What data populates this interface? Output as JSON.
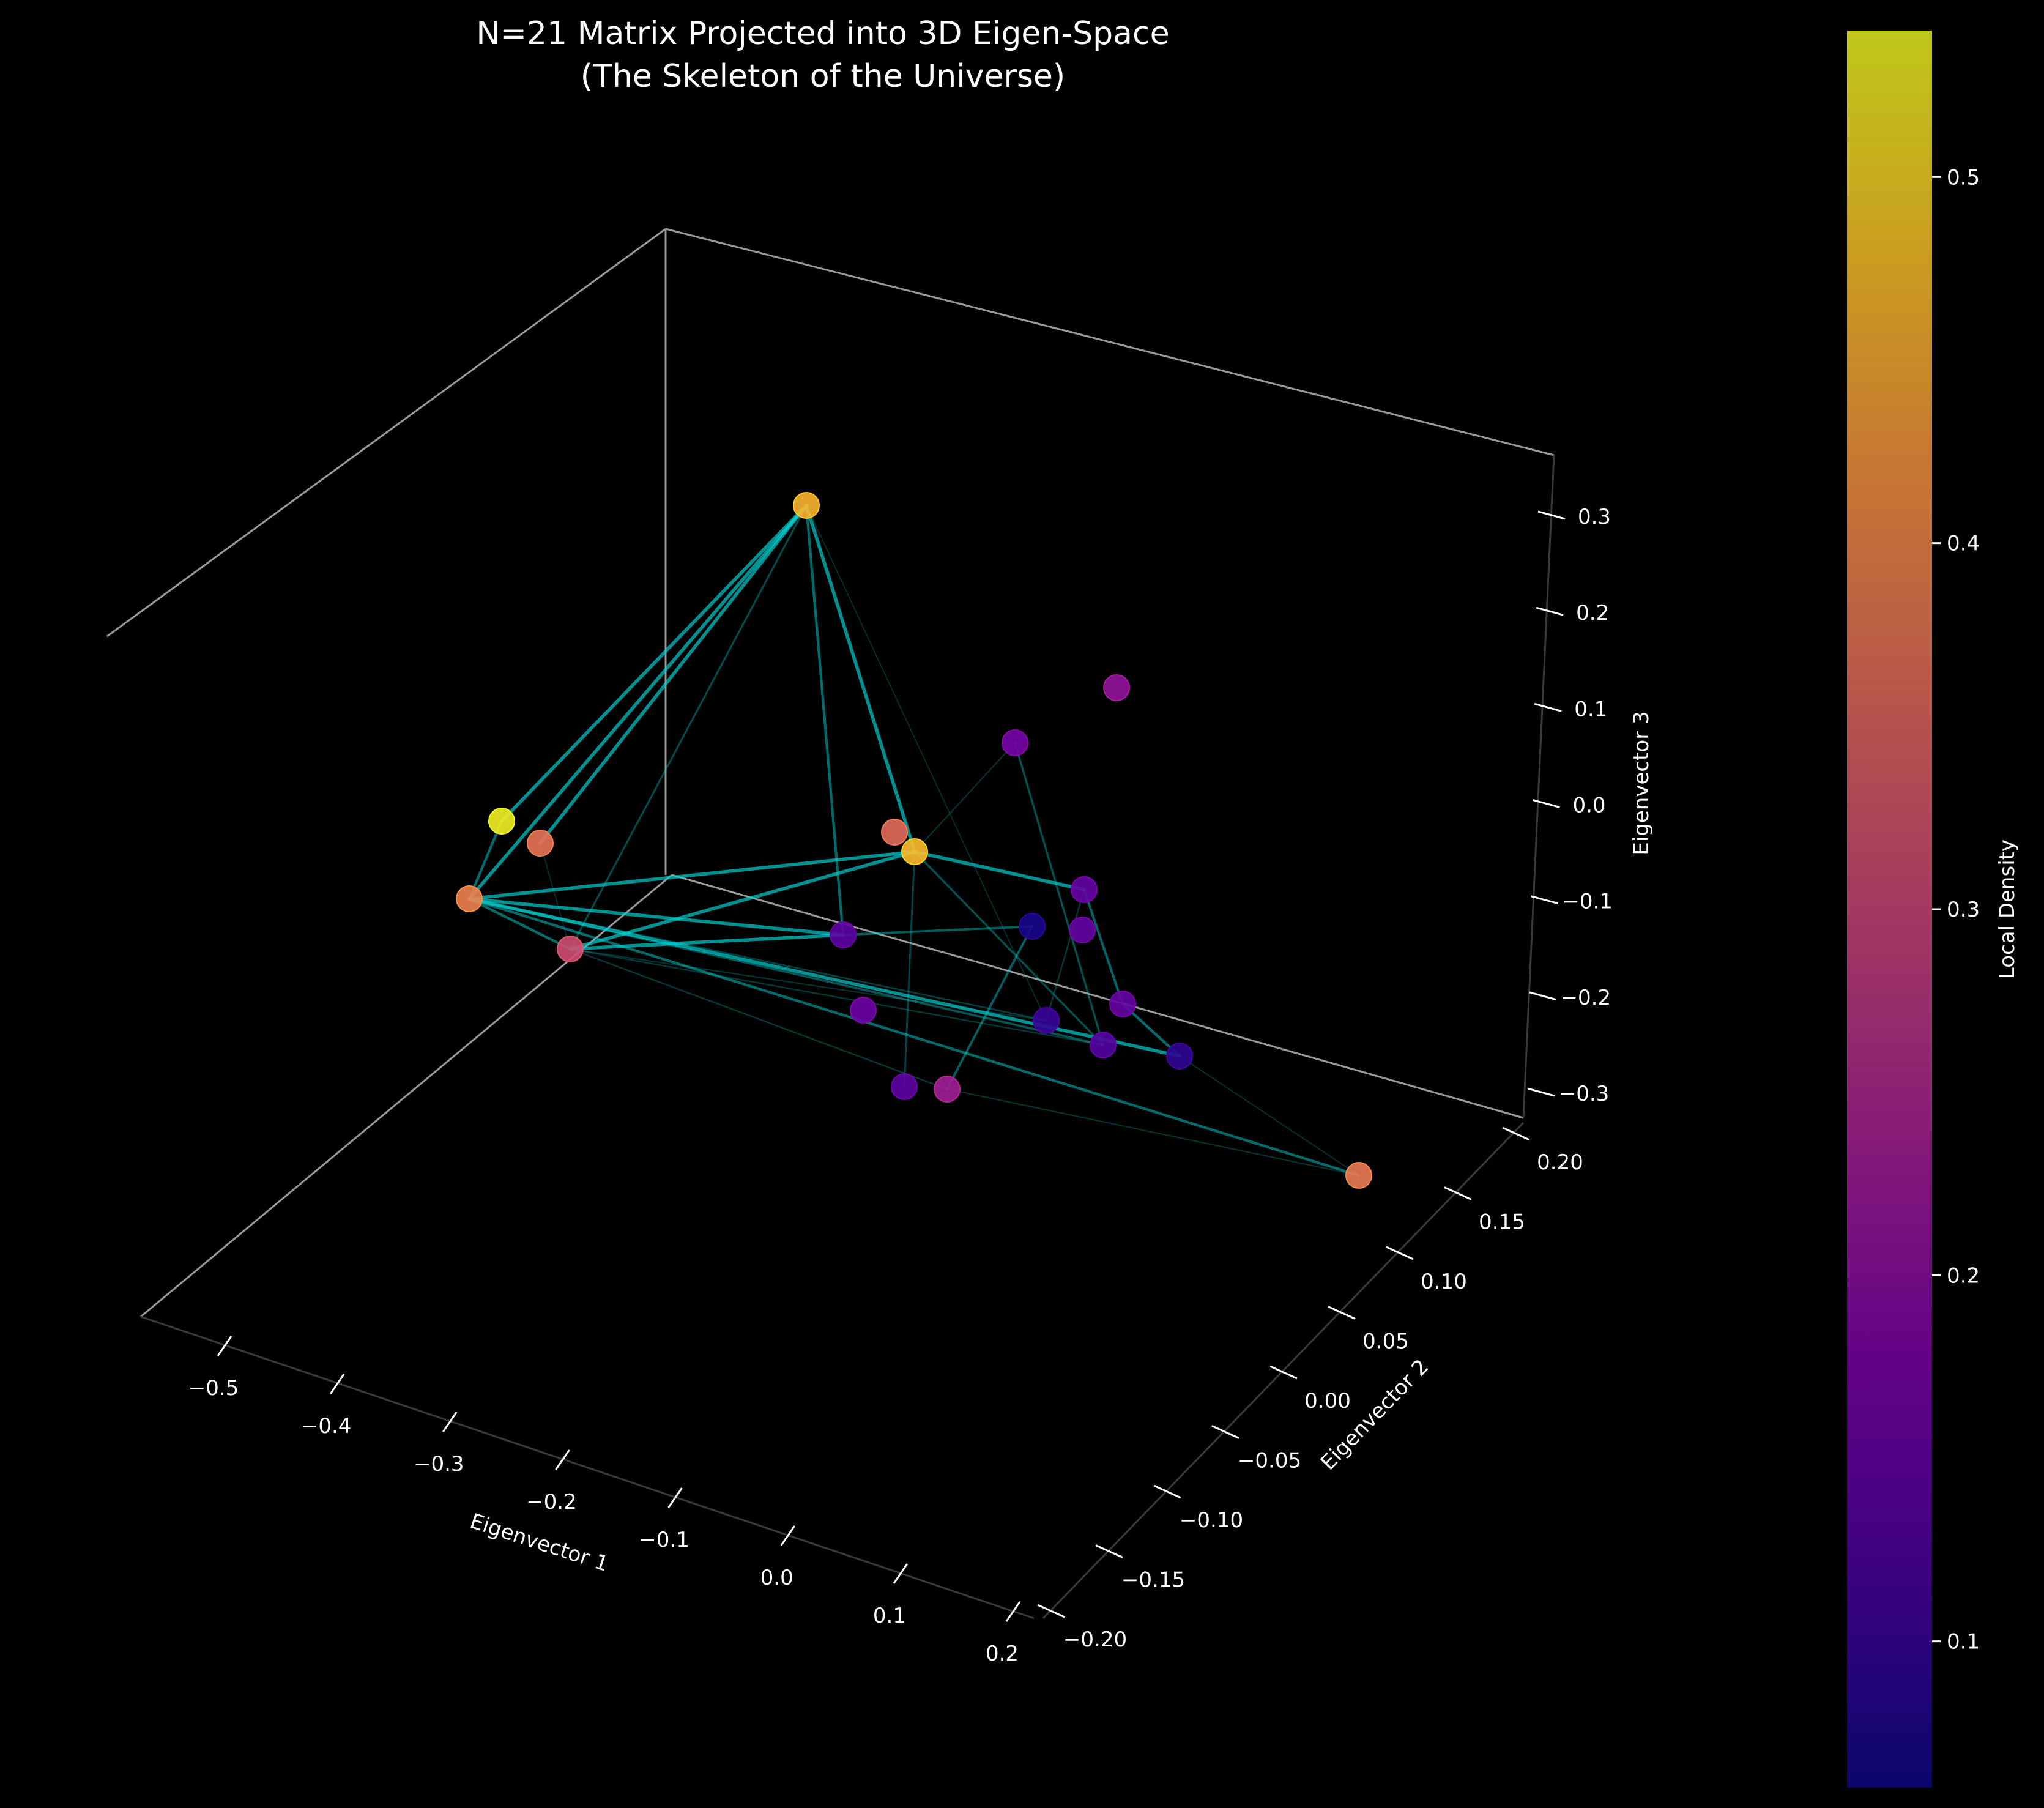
{
  "chart_data": {
    "type": "scatter",
    "title_line1": "N=21 Matrix Projected into 3D Eigen-Space",
    "title_line2": "(The Skeleton of the Universe)",
    "xlabel": "Eigenvector 1",
    "ylabel": "Eigenvector 2",
    "zlabel": "Eigenvector 3",
    "xticks": [
      "−0.5",
      "−0.4",
      "−0.3",
      "−0.2",
      "−0.1",
      "0.0",
      "0.1",
      "0.2"
    ],
    "yticks": [
      "−0.20",
      "−0.15",
      "−0.10",
      "−0.05",
      "0.00",
      "0.05",
      "0.10",
      "0.15",
      "0.20"
    ],
    "zticks": [
      "−0.3",
      "−0.2",
      "−0.1",
      "0.0",
      "0.1",
      "0.2",
      "0.3"
    ],
    "colorbar": {
      "label": "Local Density",
      "colormap": "plasma",
      "range": [
        0.06,
        0.54
      ],
      "ticks": [
        "0.1",
        "0.2",
        "0.3",
        "0.4",
        "0.5"
      ]
    },
    "edge_color": "#00d4d4",
    "nodes": [
      {
        "id": 0,
        "density": 0.46
      },
      {
        "id": 1,
        "density": 0.53
      },
      {
        "id": 2,
        "density": 0.37
      },
      {
        "id": 3,
        "density": 0.39
      },
      {
        "id": 4,
        "density": 0.31
      },
      {
        "id": 5,
        "density": 0.36
      },
      {
        "id": 6,
        "density": 0.47
      },
      {
        "id": 7,
        "density": 0.17
      },
      {
        "id": 8,
        "density": 0.21
      },
      {
        "id": 9,
        "density": 0.14
      },
      {
        "id": 10,
        "density": 0.15
      },
      {
        "id": 11,
        "density": 0.15
      },
      {
        "id": 12,
        "density": 0.07
      },
      {
        "id": 13,
        "density": 0.15
      },
      {
        "id": 14,
        "density": 0.1
      },
      {
        "id": 15,
        "density": 0.13
      },
      {
        "id": 16,
        "density": 0.09
      },
      {
        "id": 17,
        "density": 0.16
      },
      {
        "id": 18,
        "density": 0.14
      },
      {
        "id": 19,
        "density": 0.23
      },
      {
        "id": 20,
        "density": 0.38
      }
    ],
    "edges": [
      {
        "a": 0,
        "b": 1,
        "w": 0.9
      },
      {
        "a": 0,
        "b": 2,
        "w": 0.9
      },
      {
        "a": 0,
        "b": 3,
        "w": 0.9
      },
      {
        "a": 0,
        "b": 6,
        "w": 0.9
      },
      {
        "a": 0,
        "b": 9,
        "w": 0.6
      },
      {
        "a": 0,
        "b": 4,
        "w": 0.35
      },
      {
        "a": 0,
        "b": 14,
        "w": 0.1
      },
      {
        "a": 3,
        "b": 6,
        "w": 0.9
      },
      {
        "a": 3,
        "b": 9,
        "w": 0.9
      },
      {
        "a": 3,
        "b": 4,
        "w": 0.6
      },
      {
        "a": 3,
        "b": 16,
        "w": 0.9
      },
      {
        "a": 3,
        "b": 15,
        "w": 0.45
      },
      {
        "a": 3,
        "b": 20,
        "w": 0.6
      },
      {
        "a": 3,
        "b": 14,
        "w": 0.25
      },
      {
        "a": 1,
        "b": 3,
        "w": 0.6
      },
      {
        "a": 4,
        "b": 6,
        "w": 0.9
      },
      {
        "a": 4,
        "b": 9,
        "w": 0.9
      },
      {
        "a": 4,
        "b": 15,
        "w": 0.2
      },
      {
        "a": 4,
        "b": 19,
        "w": 0.2
      },
      {
        "a": 4,
        "b": 14,
        "w": 0.15
      },
      {
        "a": 6,
        "b": 10,
        "w": 0.9
      },
      {
        "a": 6,
        "b": 15,
        "w": 0.4
      },
      {
        "a": 6,
        "b": 18,
        "w": 0.3
      },
      {
        "a": 6,
        "b": 7,
        "w": 0.15
      },
      {
        "a": 9,
        "b": 12,
        "w": 0.5
      },
      {
        "a": 10,
        "b": 13,
        "w": 0.55
      },
      {
        "a": 10,
        "b": 14,
        "w": 0.2
      },
      {
        "a": 13,
        "b": 16,
        "w": 0.6
      },
      {
        "a": 7,
        "b": 15,
        "w": 0.4
      },
      {
        "a": 12,
        "b": 19,
        "w": 0.5
      },
      {
        "a": 16,
        "b": 20,
        "w": 0.12
      },
      {
        "a": 19,
        "b": 20,
        "w": 0.15
      },
      {
        "a": 2,
        "b": 4,
        "w": 0.1
      },
      {
        "a": 5,
        "b": 6,
        "w": 0.1
      }
    ]
  }
}
